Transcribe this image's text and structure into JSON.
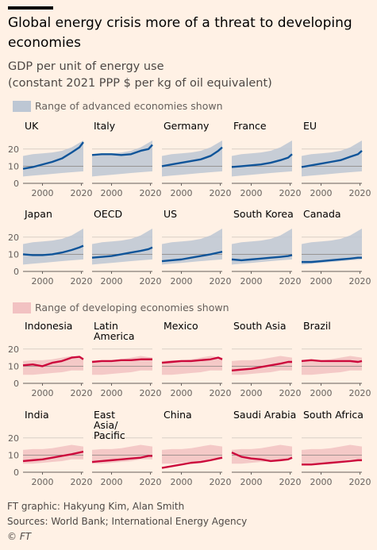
{
  "title": "Global energy crisis more of a threat to developing economies",
  "subtitle_line1": "GDP per unit of energy use",
  "subtitle_line2": "(constant 2021 PPP $ per kg of oil equivalent)",
  "legend_advanced": "Range of advanced economies shown",
  "legend_developing": "Range of developing economies shown",
  "footer": {
    "credit": "FT graphic: Hakyung Kim, Alan Smith",
    "sources": "Sources: World Bank; International Energy Agency",
    "logo": "© FT"
  },
  "colors": {
    "background": "#fff1e5",
    "advanced_line": "#0f5499",
    "advanced_band": "#bdc7d4",
    "developing_line": "#cc0a3c",
    "developing_band": "#f2c2c2"
  },
  "chart_data": {
    "type": "line",
    "x_range": [
      1990,
      2021
    ],
    "x_ticks": [
      2000,
      2020
    ],
    "y_range": [
      0,
      25
    ],
    "y_ticks": [
      0,
      10,
      20
    ],
    "reference_line": 10,
    "advanced_range": {
      "x": [
        1990,
        1995,
        2000,
        2005,
        2010,
        2015,
        2021
      ],
      "lower": [
        4,
        4.5,
        5,
        5.5,
        6,
        6.5,
        7
      ],
      "upper": [
        16,
        17,
        17.5,
        18,
        19,
        21,
        25
      ]
    },
    "developing_range": {
      "x": [
        1990,
        1995,
        2000,
        2005,
        2010,
        2015,
        2021
      ],
      "lower": [
        5,
        5,
        5.5,
        6,
        6.5,
        7.5,
        7.5
      ],
      "upper": [
        13,
        13.5,
        13.5,
        14,
        15,
        16,
        15
      ]
    },
    "advanced": [
      {
        "name": "UK",
        "x": [
          1990,
          1995,
          2000,
          2005,
          2010,
          2015,
          2019,
          2021
        ],
        "y": [
          8.5,
          9.5,
          11,
          12.5,
          14.5,
          18,
          21,
          24
        ]
      },
      {
        "name": "Italy",
        "x": [
          1990,
          1995,
          2000,
          2005,
          2010,
          2015,
          2019,
          2021
        ],
        "y": [
          16.5,
          17,
          17,
          16.5,
          17,
          19,
          20,
          22.5
        ]
      },
      {
        "name": "Germany",
        "x": [
          1990,
          1995,
          2000,
          2005,
          2010,
          2015,
          2019,
          2021
        ],
        "y": [
          10,
          11,
          12,
          13,
          14,
          16,
          19,
          21
        ]
      },
      {
        "name": "France",
        "x": [
          1990,
          1995,
          2000,
          2005,
          2010,
          2015,
          2019,
          2021
        ],
        "y": [
          9.5,
          10,
          10.5,
          11,
          12,
          13.5,
          15,
          17
        ]
      },
      {
        "name": "EU",
        "x": [
          1990,
          1995,
          2000,
          2005,
          2010,
          2015,
          2019,
          2021
        ],
        "y": [
          9.5,
          10.5,
          11.5,
          12.5,
          13.5,
          15.5,
          17,
          19
        ]
      },
      {
        "name": "Japan",
        "x": [
          1990,
          1995,
          2000,
          2005,
          2010,
          2015,
          2019,
          2021
        ],
        "y": [
          10,
          9.5,
          9.5,
          10,
          11,
          12.5,
          14,
          15
        ]
      },
      {
        "name": "OECD",
        "x": [
          1990,
          1995,
          2000,
          2005,
          2010,
          2015,
          2019,
          2021
        ],
        "y": [
          8,
          8.5,
          9,
          10,
          11,
          12,
          13,
          14
        ]
      },
      {
        "name": "US",
        "x": [
          1990,
          1995,
          2000,
          2005,
          2010,
          2015,
          2019,
          2021
        ],
        "y": [
          6,
          6.5,
          7,
          8,
          9,
          10,
          11,
          11.5
        ]
      },
      {
        "name": "South Korea",
        "x": [
          1990,
          1995,
          2000,
          2005,
          2010,
          2015,
          2019,
          2021
        ],
        "y": [
          7,
          6.5,
          7,
          7.5,
          8,
          8.5,
          9,
          9.5
        ]
      },
      {
        "name": "Canada",
        "x": [
          1990,
          1995,
          2000,
          2005,
          2010,
          2015,
          2019,
          2021
        ],
        "y": [
          5.5,
          5.5,
          6,
          6.5,
          7,
          7.5,
          8,
          8
        ]
      }
    ],
    "developing": [
      {
        "name": "Indonesia",
        "x": [
          1990,
          1995,
          2000,
          2005,
          2010,
          2015,
          2019,
          2021
        ],
        "y": [
          10.5,
          11,
          10,
          12,
          13,
          15,
          15.5,
          14
        ]
      },
      {
        "name": "Latin America",
        "x": [
          1990,
          1995,
          2000,
          2005,
          2010,
          2015,
          2019,
          2021
        ],
        "y": [
          12.5,
          13,
          13,
          13.5,
          13.5,
          14,
          14,
          14
        ]
      },
      {
        "name": "Mexico",
        "x": [
          1990,
          1995,
          2000,
          2005,
          2010,
          2015,
          2019,
          2021
        ],
        "y": [
          12,
          12.5,
          13,
          13,
          13.5,
          14,
          15,
          14
        ]
      },
      {
        "name": "South Asia",
        "x": [
          1990,
          1995,
          2000,
          2005,
          2010,
          2015,
          2019,
          2021
        ],
        "y": [
          7.5,
          8,
          8.5,
          9.5,
          10.5,
          11.5,
          12.5,
          12.5
        ]
      },
      {
        "name": "Brazil",
        "x": [
          1990,
          1995,
          2000,
          2005,
          2010,
          2015,
          2019,
          2021
        ],
        "y": [
          13,
          13.5,
          13,
          13,
          13,
          13,
          12.5,
          13
        ]
      },
      {
        "name": "India",
        "x": [
          1990,
          1995,
          2000,
          2005,
          2010,
          2015,
          2019,
          2021
        ],
        "y": [
          6.5,
          7,
          7.5,
          8.5,
          9.5,
          10.5,
          11.5,
          12
        ]
      },
      {
        "name": "East Asia/ Pacific",
        "x": [
          1990,
          1995,
          2000,
          2005,
          2010,
          2015,
          2019,
          2021
        ],
        "y": [
          6,
          6.5,
          7,
          7.5,
          8,
          8.5,
          9.5,
          9.5
        ]
      },
      {
        "name": "China",
        "x": [
          1990,
          1995,
          2000,
          2005,
          2010,
          2015,
          2019,
          2021
        ],
        "y": [
          2.5,
          3.5,
          4.5,
          5.5,
          6,
          7,
          8,
          8.5
        ]
      },
      {
        "name": "Saudi Arabia",
        "x": [
          1990,
          1995,
          2000,
          2005,
          2010,
          2015,
          2019,
          2021
        ],
        "y": [
          11.5,
          9,
          8,
          7.5,
          6.5,
          7,
          7.5,
          8.5
        ]
      },
      {
        "name": "South Africa",
        "x": [
          1990,
          1995,
          2000,
          2005,
          2010,
          2015,
          2019,
          2021
        ],
        "y": [
          4.5,
          4.5,
          5,
          5.5,
          6,
          6.5,
          7,
          7
        ]
      }
    ]
  }
}
